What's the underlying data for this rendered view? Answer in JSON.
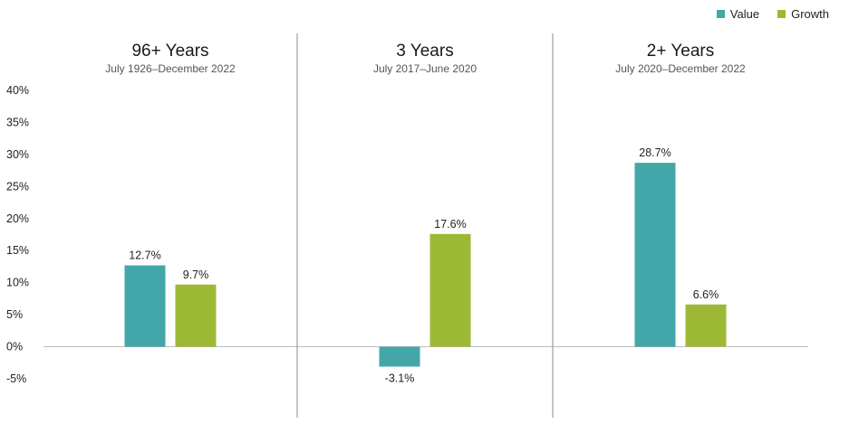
{
  "legend": [
    {
      "name": "Value",
      "color": "#43a7aa"
    },
    {
      "name": "Growth",
      "color": "#9db835"
    }
  ],
  "chart_data": {
    "type": "bar",
    "ylim": [
      -5,
      40
    ],
    "y_ticks": [
      "40%",
      "35%",
      "30%",
      "25%",
      "20%",
      "15%",
      "10%",
      "5%",
      "0%",
      "-5%"
    ],
    "grid": false,
    "legend_position": "top-right",
    "panels": [
      {
        "title": "96+ Years",
        "subtitle": "July 1926–December 2022",
        "values": [
          12.7,
          9.7
        ],
        "labels": [
          "12.7%",
          "9.7%"
        ]
      },
      {
        "title": "3 Years",
        "subtitle": "July 2017–June 2020",
        "values": [
          -3.1,
          17.6
        ],
        "labels": [
          "-3.1%",
          "17.6%"
        ]
      },
      {
        "title": "2+ Years",
        "subtitle": "July 2020–December 2022",
        "values": [
          28.7,
          6.6
        ],
        "labels": [
          "28.7%",
          "6.6%"
        ]
      }
    ],
    "series": [
      {
        "name": "Value",
        "color": "#43a7aa"
      },
      {
        "name": "Growth",
        "color": "#9db835"
      }
    ]
  }
}
